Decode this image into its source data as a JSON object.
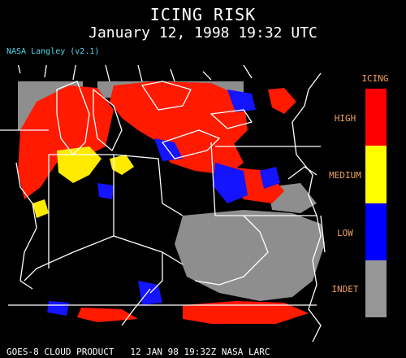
{
  "header": {
    "title": "ICING RISK",
    "datetime": "January 12, 1998 19:32 UTC",
    "credit": "NASA Langley (v2.1)"
  },
  "legend": {
    "title": "ICING",
    "entries": [
      {
        "label": "HIGH",
        "color": "#ff0000"
      },
      {
        "label": "MEDIUM",
        "color": "#ffff00"
      },
      {
        "label": "LOW",
        "color": "#0000ff"
      },
      {
        "label": "INDET",
        "color": "#969696"
      }
    ]
  },
  "footer": {
    "text": "GOES-8 CLOUD PRODUCT   12 JAN 98 19:32Z NASA LARC"
  },
  "colors": {
    "background": "#000000",
    "boundaries": "#ffffff",
    "credit": "#4fd6e6",
    "legend_text": "#f0a060"
  }
}
